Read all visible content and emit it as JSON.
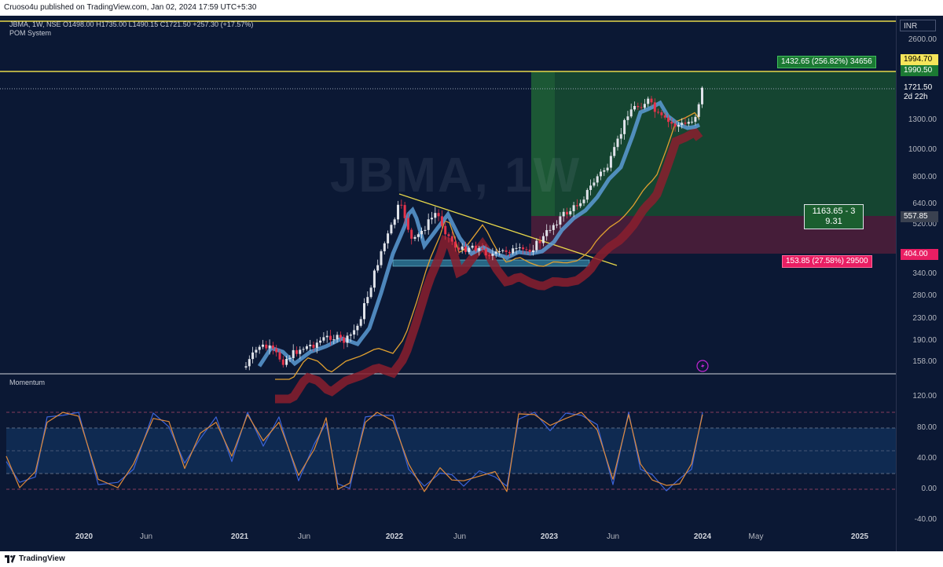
{
  "header": {
    "published_text": "Cruoso4u published on TradingView.com, Jan 02, 2024 17:59 UTC+5:30"
  },
  "footer": {
    "brand": "TradingView"
  },
  "legend": {
    "symbol_line": "JBMA, 1W, NSE",
    "open": "O1498.00",
    "high": "H1735.00",
    "low": "L1490.15",
    "close": "C1721.50",
    "change": "+257.30 (+17.57%)",
    "indicator": "POM System"
  },
  "watermark": "JBMA, 1W",
  "currency": "INR",
  "price_axis_ticks": [
    "2600.00",
    "1994.70",
    "1990.50",
    "1721.50",
    "1300.00",
    "1000.00",
    "800.00",
    "640.00",
    "557.85",
    "520.00",
    "404.00",
    "340.00",
    "280.00",
    "230.00",
    "190.00",
    "158.00"
  ],
  "last_price": {
    "value": "1721.50",
    "countdown": "2d 22h"
  },
  "position": {
    "target_label": "1432.65 (256.82%) 34656",
    "ratio_label_line1": "1163.65 - 3",
    "ratio_label_line2": "9.31",
    "stop_label": "153.85 (27.58%) 29500",
    "target_price": "1990.50",
    "target_price_2": "1994.70",
    "entry_price": "557.85",
    "stop_price": "404.00"
  },
  "momentum": {
    "title": "Momentum",
    "axis_ticks": [
      "120.00",
      "80.00",
      "40.00",
      "0.00",
      "-40.00"
    ],
    "upper_band": 80,
    "lower_band": 20
  },
  "time_axis": {
    "labels": [
      {
        "text": "2020",
        "major": true
      },
      {
        "text": "Jun",
        "major": false
      },
      {
        "text": "2021",
        "major": true
      },
      {
        "text": "Jun",
        "major": false
      },
      {
        "text": "2022",
        "major": true
      },
      {
        "text": "Jun",
        "major": false
      },
      {
        "text": "2023",
        "major": true
      },
      {
        "text": "Jun",
        "major": false
      },
      {
        "text": "2024",
        "major": true
      },
      {
        "text": "May",
        "major": false
      },
      {
        "text": "2025",
        "major": true
      }
    ]
  },
  "colors": {
    "background": "#0b1834",
    "bull": "#e0e3ea",
    "bear": "#e5334b",
    "target_zone": "#1b5e2f",
    "stop_zone": "#5a1f3b",
    "hline": "#e8d84a",
    "target_badge": "#1b7a33",
    "stop_badge": "#e91e63",
    "momentum_fast": "#3b63d8",
    "momentum_slow": "#e08a3a"
  },
  "icons": [
    "lightning-icon",
    "tradingview-logo-icon"
  ]
}
